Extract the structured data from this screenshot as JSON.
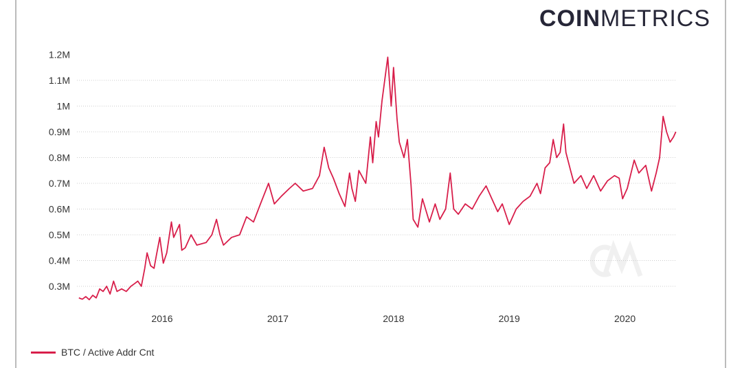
{
  "brand": {
    "logo_bold": "COIN",
    "logo_light": "METRICS"
  },
  "chart_data": {
    "type": "line",
    "title": "",
    "xlabel": "",
    "ylabel": "",
    "xlim": [
      2015.27,
      2020.45
    ],
    "ylim": [
      0.23,
      1.2
    ],
    "yticks": [
      0.3,
      0.4,
      0.5,
      0.6,
      0.7,
      0.8,
      0.9,
      1.0,
      1.1,
      1.2
    ],
    "ytick_labels": [
      "0.3M",
      "0.4M",
      "0.5M",
      "0.6M",
      "0.7M",
      "0.8M",
      "0.9M",
      "1M",
      "1.1M",
      "1.2M"
    ],
    "xticks": [
      2016,
      2017,
      2018,
      2019,
      2020
    ],
    "xtick_labels": [
      "2016",
      "2017",
      "2018",
      "2019",
      "2020"
    ],
    "grid": "horizontal dotted",
    "legend_placement": "bottom-left",
    "series": [
      {
        "name": "BTC / Active Addr Cnt",
        "color": "#d81e4a",
        "unit": "M",
        "x": [
          2015.28,
          2015.31,
          2015.34,
          2015.37,
          2015.4,
          2015.43,
          2015.46,
          2015.49,
          2015.52,
          2015.55,
          2015.58,
          2015.61,
          2015.65,
          2015.69,
          2015.73,
          2015.76,
          2015.79,
          2015.82,
          2015.85,
          2015.87,
          2015.9,
          2015.93,
          2015.95,
          2015.98,
          2016.01,
          2016.04,
          2016.08,
          2016.1,
          2016.13,
          2016.15,
          2016.17,
          2016.2,
          2016.25,
          2016.3,
          2016.38,
          2016.43,
          2016.47,
          2016.5,
          2016.53,
          2016.6,
          2016.67,
          2016.73,
          2016.79,
          2016.85,
          2016.92,
          2016.97,
          2017.03,
          2017.1,
          2017.15,
          2017.22,
          2017.3,
          2017.36,
          2017.4,
          2017.44,
          2017.48,
          2017.53,
          2017.58,
          2017.62,
          2017.64,
          2017.67,
          2017.7,
          2017.76,
          2017.8,
          2017.82,
          2017.85,
          2017.87,
          2017.9,
          2017.95,
          2017.98,
          2018.0,
          2018.03,
          2018.05,
          2018.09,
          2018.12,
          2018.15,
          2018.17,
          2018.21,
          2018.25,
          2018.31,
          2018.36,
          2018.4,
          2018.45,
          2018.49,
          2018.52,
          2018.56,
          2018.62,
          2018.68,
          2018.74,
          2018.8,
          2018.85,
          2018.9,
          2018.94,
          2019.0,
          2019.06,
          2019.12,
          2019.18,
          2019.24,
          2019.27,
          2019.31,
          2019.35,
          2019.38,
          2019.41,
          2019.44,
          2019.47,
          2019.49,
          2019.53,
          2019.56,
          2019.62,
          2019.67,
          2019.73,
          2019.79,
          2019.85,
          2019.91,
          2019.95,
          2019.98,
          2020.02,
          2020.08,
          2020.12,
          2020.18,
          2020.23,
          2020.27,
          2020.3,
          2020.33,
          2020.36,
          2020.39,
          2020.42,
          2020.44
        ],
        "y": [
          0.255,
          0.25,
          0.26,
          0.248,
          0.265,
          0.255,
          0.29,
          0.28,
          0.3,
          0.27,
          0.32,
          0.28,
          0.29,
          0.28,
          0.3,
          0.31,
          0.32,
          0.3,
          0.37,
          0.43,
          0.38,
          0.37,
          0.42,
          0.49,
          0.39,
          0.43,
          0.55,
          0.49,
          0.52,
          0.54,
          0.44,
          0.45,
          0.5,
          0.46,
          0.47,
          0.5,
          0.56,
          0.5,
          0.46,
          0.49,
          0.5,
          0.57,
          0.55,
          0.62,
          0.7,
          0.62,
          0.65,
          0.68,
          0.7,
          0.67,
          0.68,
          0.73,
          0.84,
          0.76,
          0.72,
          0.66,
          0.61,
          0.74,
          0.68,
          0.63,
          0.75,
          0.7,
          0.88,
          0.78,
          0.94,
          0.88,
          1.02,
          1.19,
          1.0,
          1.15,
          0.95,
          0.86,
          0.8,
          0.87,
          0.7,
          0.56,
          0.53,
          0.64,
          0.55,
          0.62,
          0.56,
          0.6,
          0.74,
          0.6,
          0.58,
          0.62,
          0.6,
          0.65,
          0.69,
          0.64,
          0.59,
          0.62,
          0.54,
          0.6,
          0.63,
          0.65,
          0.7,
          0.66,
          0.76,
          0.78,
          0.87,
          0.8,
          0.82,
          0.93,
          0.82,
          0.75,
          0.7,
          0.73,
          0.68,
          0.73,
          0.67,
          0.71,
          0.73,
          0.72,
          0.64,
          0.68,
          0.79,
          0.74,
          0.77,
          0.67,
          0.74,
          0.8,
          0.96,
          0.9,
          0.86,
          0.88,
          0.9
        ]
      }
    ]
  }
}
